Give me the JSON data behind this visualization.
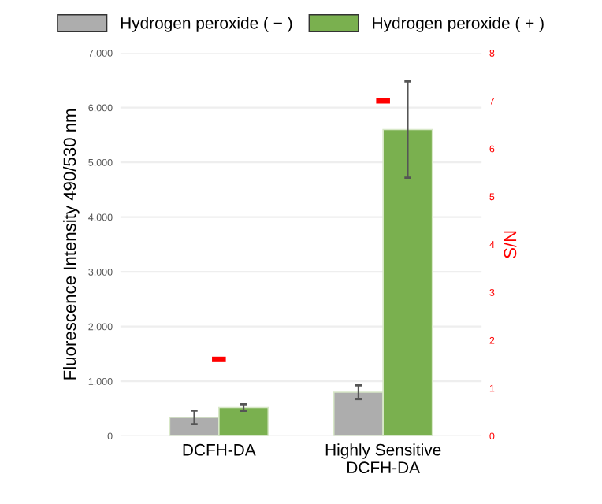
{
  "chart_data": {
    "type": "bar",
    "categories": [
      "DCFH-DA",
      "Highly Sensitive\nDCFH-DA"
    ],
    "ylabel": "Fluorescence Intensity 490/530 nm",
    "y2label": "S/N",
    "series": [
      {
        "name": "Hydrogen peroxide ( − )",
        "color": "#adadad",
        "values": [
          340,
          800
        ],
        "errors": [
          125,
          125
        ]
      },
      {
        "name": "Hydrogen peroxide ( + )",
        "color": "#7ab04f",
        "values": [
          520,
          5600
        ],
        "errors": [
          60,
          880
        ]
      },
      {
        "type": "scatter",
        "axis": "y2",
        "color": "#ff0000",
        "values": [
          1.6,
          7.0
        ]
      }
    ],
    "ylim": [
      0,
      7000
    ],
    "yticks": [
      0,
      {
        "value": 1000,
        "label": "1,000"
      },
      {
        "value": 2000,
        "label": "2,000"
      },
      {
        "value": 3000,
        "label": "3,000"
      },
      {
        "value": 4000,
        "label": "4,000"
      },
      {
        "value": 5000,
        "label": "5,000"
      },
      {
        "value": 6000,
        "label": "6,000"
      },
      {
        "value": 7000,
        "label": "7,000"
      }
    ],
    "y2lim": [
      0,
      8
    ],
    "y2ticks": [
      0,
      1,
      2,
      3,
      4,
      5,
      6,
      7,
      8
    ],
    "grid": "y",
    "legend": "top"
  }
}
